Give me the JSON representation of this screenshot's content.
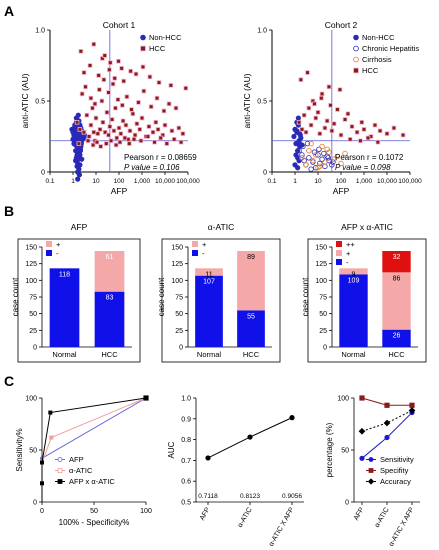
{
  "panels": {
    "A": "A",
    "B": "B",
    "C": "C"
  },
  "colors": {
    "non_hcc": "#2a2ab8",
    "hcc": "#8b1a1a",
    "chronic_hepatitis": "#2a2ab8",
    "cirrhosis": "#e07a2a",
    "negative": "#1010e8",
    "positive": "#f4a8a8",
    "plusplus": "#e01010",
    "neg_light": "#c8b4b4",
    "auc_line": "#000000",
    "sensitivity": "#1a1ad0",
    "specificity": "#8b1a1a",
    "accuracy": "#000000",
    "roc_afp": "#6a6ad8",
    "roc_atic": "#f0a0a0",
    "roc_both": "#000000"
  },
  "chart_data": [
    {
      "id": "scatter-cohort1",
      "type": "scatter",
      "title": "Cohort 1",
      "xlabel": "AFP",
      "ylabel": "anti-ATIC (AU)",
      "xscale": "log",
      "xlim": [
        0.1,
        100000
      ],
      "ylim": [
        0,
        1.0
      ],
      "x_ticks": [
        "0.1",
        "1",
        "10",
        "100",
        "1,000",
        "10,000",
        "100,000"
      ],
      "y_ticks": [
        "0",
        "0.5",
        "1.0"
      ],
      "legend": [
        "Non-HCC",
        "HCC"
      ],
      "stats": {
        "pearson": "Pearson r = 0.08659",
        "p": "P value = 0.106"
      },
      "series": [
        {
          "name": "Non-HCC",
          "x": [
            0.9,
            1.0,
            1.1,
            1.2,
            1.3,
            1.4,
            1.5,
            1.6,
            1.7,
            1.8,
            1.9,
            2.0,
            2.1,
            2.2,
            2.3,
            2.5,
            2.7,
            3.0,
            1.1,
            1.3,
            1.5,
            1.7,
            1.9,
            2.1,
            2.3,
            1.2,
            1.4,
            1.6,
            1.8,
            2.0,
            2.2,
            2.4,
            1.0,
            1.3,
            1.6,
            1.9,
            2.2,
            1.5,
            1.8,
            1.4,
            1.7,
            2.0,
            1.2,
            1.5,
            1.8,
            1.6,
            1.9,
            1.4,
            1.7,
            2.1,
            2.6,
            3.2,
            1.3,
            1.6,
            2.0,
            2.4,
            1.5,
            1.8,
            1.1,
            1.4,
            1.7,
            2.0,
            1.6,
            1.9,
            1.3,
            1.5,
            1.8,
            2.2,
            1.6,
            1.4,
            1.7,
            1.5,
            1.8,
            1.6,
            1.4
          ],
          "y": [
            0.3,
            0.28,
            0.26,
            0.32,
            0.25,
            0.29,
            0.27,
            0.24,
            0.31,
            0.22,
            0.26,
            0.28,
            0.23,
            0.3,
            0.21,
            0.25,
            0.27,
            0.24,
            0.2,
            0.19,
            0.18,
            0.17,
            0.22,
            0.16,
            0.2,
            0.33,
            0.35,
            0.34,
            0.36,
            0.33,
            0.31,
            0.29,
            0.23,
            0.15,
            0.14,
            0.13,
            0.18,
            0.12,
            0.11,
            0.1,
            0.09,
            0.12,
            0.27,
            0.26,
            0.24,
            0.22,
            0.21,
            0.19,
            0.17,
            0.15,
            0.23,
            0.26,
            0.08,
            0.06,
            0.05,
            0.09,
            0.04,
            0.02,
            0.24,
            0.21,
            0.28,
            0.25,
            0.0,
            -0.02,
            0.3,
            0.32,
            0.29,
            0.27,
            -0.05,
            0.38,
            0.4,
            0.26,
            0.23,
            0.2,
            0.22
          ]
        },
        {
          "name": "HCC",
          "x": [
            1.5,
            2.0,
            3,
            4,
            5,
            6,
            7,
            8,
            9,
            10,
            12,
            15,
            18,
            20,
            25,
            30,
            35,
            40,
            50,
            60,
            70,
            80,
            100,
            120,
            150,
            200,
            250,
            300,
            400,
            500,
            600,
            800,
            1000,
            1500,
            2000,
            3000,
            4000,
            5000,
            8000,
            10000,
            20000,
            40000,
            60000,
            2.5,
            3.5,
            6,
            9,
            14,
            22,
            35,
            55,
            90,
            140,
            220,
            350,
            700,
            1200,
            2500,
            4500,
            9000,
            15000,
            30000,
            1.8,
            4.5,
            7.5,
            11,
            16,
            28,
            45,
            75,
            110,
            180,
            280,
            450,
            900,
            1800,
            3500,
            6500,
            12000,
            25000,
            50000,
            3,
            5.5,
            13,
            19,
            38,
            65,
            95,
            160,
            320,
            550,
            1100,
            2200,
            5500,
            18000,
            80000,
            2.2,
            8,
            24,
            42,
            130
          ],
          "y": [
            0.35,
            0.3,
            0.28,
            0.4,
            0.25,
            0.33,
            0.45,
            0.28,
            0.22,
            0.38,
            0.27,
            0.3,
            0.5,
            0.35,
            0.28,
            0.42,
            0.26,
            0.32,
            0.37,
            0.29,
            0.45,
            0.24,
            0.31,
            0.27,
            0.36,
            0.33,
            0.23,
            0.29,
            0.41,
            0.26,
            0.34,
            0.3,
            0.38,
            0.25,
            0.32,
            0.28,
            0.35,
            0.3,
            0.26,
            0.33,
            0.29,
            0.31,
            0.27,
            0.55,
            0.6,
            0.52,
            0.48,
            0.58,
            0.65,
            0.56,
            0.62,
            0.51,
            0.47,
            0.53,
            0.44,
            0.49,
            0.57,
            0.46,
            0.52,
            0.43,
            0.48,
            0.45,
            0.2,
            0.22,
            0.19,
            0.21,
            0.18,
            0.2,
            0.22,
            0.19,
            0.21,
            0.24,
            0.2,
            0.23,
            0.22,
            0.25,
            0.21,
            0.24,
            0.2,
            0.23,
            0.21,
            0.7,
            0.75,
            0.68,
            0.8,
            0.72,
            0.66,
            0.78,
            0.64,
            0.71,
            0.69,
            0.74,
            0.67,
            0.63,
            0.61,
            0.59,
            0.85,
            0.9,
            0.82,
            0.77,
            0.73
          ]
        }
      ]
    },
    {
      "id": "scatter-cohort2",
      "type": "scatter",
      "title": "Cohort 2",
      "xlabel": "AFP",
      "ylabel": "anti-ATIC (AU)",
      "xscale": "log",
      "xlim": [
        0.1,
        100000
      ],
      "ylim": [
        0,
        1.0
      ],
      "x_ticks": [
        "0.1",
        "1",
        "10",
        "100",
        "1,000",
        "10,000",
        "100,000"
      ],
      "y_ticks": [
        "0",
        "0.5",
        "1.0"
      ],
      "legend": [
        "Non-HCC",
        "Chronic Hepatitis",
        "Cirrhosis",
        "HCC"
      ],
      "stats": {
        "pearson": "Pearson r = 0.1072",
        "p": "P value = 0.098"
      },
      "series": [
        {
          "name": "Non-HCC",
          "x": [
            0.9,
            1.0,
            1.1,
            1.2,
            1.3,
            1.4,
            1.5,
            1.6,
            1.8,
            2.0,
            1.1,
            1.3,
            1.5,
            1.2,
            1.4,
            1.6,
            1.0,
            1.3,
            1.7,
            1.2,
            1.5
          ],
          "y": [
            0.25,
            0.3,
            0.2,
            0.28,
            0.15,
            0.33,
            0.22,
            0.27,
            0.24,
            0.19,
            0.12,
            0.1,
            0.08,
            0.35,
            0.38,
            0.18,
            0.05,
            0.03,
            0.26,
            0.29,
            0.21
          ]
        },
        {
          "name": "Chronic Hepatitis",
          "x": [
            1.5,
            2.0,
            2.5,
            3,
            4,
            5,
            6,
            8,
            10,
            12,
            15,
            20,
            25,
            30,
            40,
            2.2,
            3.5,
            7,
            11,
            18,
            28,
            45
          ],
          "y": [
            0.15,
            0.12,
            0.08,
            0.05,
            0.1,
            0.02,
            0.07,
            0.03,
            0.12,
            0.06,
            0.09,
            0.04,
            0.11,
            0.08,
            0.05,
            0.18,
            0.2,
            0.14,
            0.16,
            0.13,
            0.1,
            0.07
          ]
        },
        {
          "name": "Cirrhosis",
          "x": [
            2,
            3,
            4,
            6,
            8,
            10,
            15,
            20,
            30,
            50,
            70,
            100,
            150,
            5,
            12,
            25
          ],
          "y": [
            0.1,
            0.05,
            0.15,
            0.08,
            0.12,
            0.03,
            0.18,
            0.07,
            0.14,
            0.09,
            0.11,
            0.06,
            0.13,
            0.2,
            0.04,
            0.16
          ]
        },
        {
          "name": "HCC",
          "x": [
            1.5,
            2,
            2.5,
            3,
            4,
            5,
            6,
            8,
            10,
            12,
            15,
            20,
            25,
            30,
            40,
            50,
            70,
            100,
            150,
            200,
            300,
            500,
            800,
            1000,
            2000,
            3000,
            5000,
            10000,
            20000,
            50000,
            1.8,
            3.5,
            7,
            14,
            35,
            90,
            250,
            700,
            1500,
            4000
          ],
          "y": [
            0.35,
            0.3,
            0.4,
            0.28,
            0.45,
            0.33,
            0.5,
            0.38,
            0.42,
            0.27,
            0.55,
            0.31,
            0.36,
            0.6,
            0.29,
            0.34,
            0.44,
            0.26,
            0.37,
            0.41,
            0.32,
            0.28,
            0.35,
            0.3,
            0.25,
            0.33,
            0.29,
            0.27,
            0.31,
            0.26,
            0.65,
            0.7,
            0.48,
            0.52,
            0.47,
            0.58,
            0.23,
            0.22,
            0.24,
            0.21
          ]
        }
      ]
    },
    {
      "id": "bar-afp",
      "type": "bar",
      "title": "AFP",
      "ylabel": "case count",
      "ylim": [
        0,
        150
      ],
      "y_ticks": [
        "0",
        "25",
        "50",
        "75",
        "100",
        "125",
        "150"
      ],
      "categories": [
        "Normal",
        "HCC"
      ],
      "legend": [
        "+",
        "-"
      ],
      "series": [
        {
          "name": "-",
          "values": [
            118,
            83
          ],
          "labels": [
            "118",
            "83"
          ]
        },
        {
          "name": "+",
          "values": [
            0,
            61
          ],
          "labels": [
            "",
            "61"
          ]
        }
      ]
    },
    {
      "id": "bar-atic",
      "type": "bar",
      "title": "α-ATIC",
      "ylabel": "case count",
      "ylim": [
        0,
        150
      ],
      "y_ticks": [
        "0",
        "25",
        "50",
        "75",
        "100",
        "125",
        "150"
      ],
      "categories": [
        "Normal",
        "HCC"
      ],
      "legend": [
        "+",
        "-"
      ],
      "series": [
        {
          "name": "-",
          "values": [
            107,
            55
          ],
          "labels": [
            "107",
            "55"
          ]
        },
        {
          "name": "+",
          "values": [
            11,
            89
          ],
          "labels": [
            "11",
            "89"
          ]
        }
      ]
    },
    {
      "id": "bar-combo",
      "type": "bar",
      "title": "AFP x α-ATIC",
      "ylabel": "case count",
      "ylim": [
        0,
        150
      ],
      "y_ticks": [
        "0",
        "25",
        "50",
        "75",
        "100",
        "125",
        "150"
      ],
      "categories": [
        "Normal",
        "HCC"
      ],
      "legend": [
        "++",
        "+",
        "-"
      ],
      "series": [
        {
          "name": "-",
          "values": [
            109,
            26
          ],
          "labels": [
            "109",
            "26"
          ]
        },
        {
          "name": "+",
          "values": [
            9,
            86
          ],
          "labels": [
            "9",
            "86"
          ]
        },
        {
          "name": "++",
          "values": [
            0,
            32
          ],
          "labels": [
            "",
            "32"
          ]
        }
      ]
    },
    {
      "id": "roc",
      "type": "line",
      "xlabel": "100% - Specificity%",
      "ylabel": "Sensitivity%",
      "xlim": [
        0,
        100
      ],
      "ylim": [
        0,
        100
      ],
      "x_ticks": [
        "0",
        "50",
        "100"
      ],
      "y_ticks": [
        "0",
        "50",
        "100"
      ],
      "legend": [
        "AFP",
        "α-ATIC",
        "AFP x α-ATIC"
      ],
      "series": [
        {
          "name": "AFP",
          "x": [
            0,
            0,
            100
          ],
          "y": [
            0,
            42,
            100
          ]
        },
        {
          "name": "α-ATIC",
          "x": [
            0,
            0,
            9,
            100
          ],
          "y": [
            0,
            38,
            62,
            100
          ]
        },
        {
          "name": "AFP x α-ATIC",
          "x": [
            0,
            0,
            0,
            8,
            100
          ],
          "y": [
            0,
            18,
            38,
            86,
            100
          ]
        }
      ]
    },
    {
      "id": "auc",
      "type": "line",
      "ylabel": "AUC",
      "ylim": [
        0.5,
        1.0
      ],
      "y_ticks": [
        "0.5",
        "0.6",
        "0.7",
        "0.8",
        "0.9",
        "1.0"
      ],
      "categories": [
        "AFP",
        "α-ATIC",
        "α-ATIC X AFP"
      ],
      "values": [
        0.7118,
        0.8123,
        0.9056
      ],
      "value_labels": [
        "0.7118",
        "0.8123",
        "0.9056"
      ]
    },
    {
      "id": "perf",
      "type": "line",
      "ylabel": "percentage (%)",
      "ylim": [
        0,
        100
      ],
      "y_ticks": [
        "0",
        "50",
        "100"
      ],
      "categories": [
        "AFP",
        "α-ATIC",
        "α-ATIC X AFP"
      ],
      "legend": [
        "Sensitivity",
        "Specifity",
        "Accuracy"
      ],
      "series": [
        {
          "name": "Sensitivity",
          "values": [
            42,
            62,
            86
          ]
        },
        {
          "name": "Specifity",
          "values": [
            100,
            93,
            93
          ]
        },
        {
          "name": "Accuracy",
          "values": [
            68,
            76,
            88
          ]
        }
      ]
    }
  ]
}
